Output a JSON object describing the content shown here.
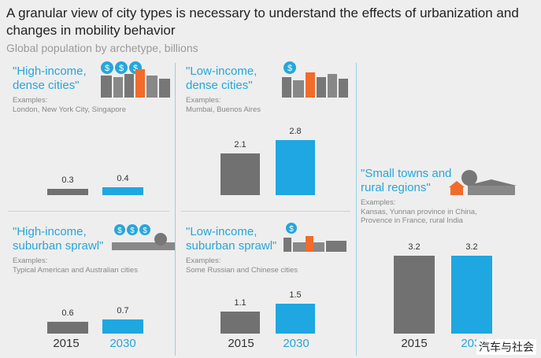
{
  "title": "A granular view of city types is necessary to understand the effects of urbanization and changes in mobility behavior",
  "subtitle": "Global population by archetype, billions",
  "examples_label": "Examples:",
  "years": [
    "2015",
    "2030"
  ],
  "colors": {
    "y2015": "#717171",
    "y2030": "#1ea7e1",
    "accent": "#27a6d9",
    "orange": "#f26b2b"
  },
  "chart_data": {
    "type": "bar",
    "categories": [
      "2015",
      "2030"
    ],
    "panels": [
      {
        "title": "\"High-income, dense cities\"",
        "examples": "London, New York City, Singapore",
        "values": [
          0.3,
          0.4
        ],
        "labels": [
          "0.3",
          "0.4"
        ]
      },
      {
        "title": "\"Low-income, dense cities\"",
        "examples": "Mumbai, Buenos Aires",
        "values": [
          2.1,
          2.8
        ],
        "labels": [
          "2.1",
          "2.8"
        ]
      },
      {
        "title": "\"High-income, suburban sprawl\"",
        "examples": "Typical American and Australian cities",
        "values": [
          0.6,
          0.7
        ],
        "labels": [
          "0.6",
          "0.7"
        ]
      },
      {
        "title": "\"Low-income, suburban sprawl\"",
        "examples": "Some Russian and Chinese cities",
        "values": [
          1.1,
          1.5
        ],
        "labels": [
          "1.1",
          "1.5"
        ]
      },
      {
        "title": "\"Small towns and rural regions\"",
        "examples": "Kansas, Yunnan province in China, Provence in France, rural India",
        "values": [
          3.2,
          3.2
        ],
        "labels": [
          "3.2",
          "3.2"
        ]
      }
    ]
  },
  "panel_titles": {
    "p0": [
      "\"High-income,",
      "dense cities\""
    ],
    "p1": [
      "\"Low-income,",
      "dense cities\""
    ],
    "p2": [
      "\"High-income,",
      "suburban sprawl\""
    ],
    "p3": [
      "\"Low-income,",
      "suburban sprawl\""
    ],
    "p4": [
      "\"Small towns and",
      "rural regions\""
    ]
  },
  "panel_examples": {
    "p0": [
      "London, New York City, Singapore"
    ],
    "p1": [
      "Mumbai, Buenos Aires"
    ],
    "p2": [
      "Typical American and Australian cities"
    ],
    "p3": [
      "Some Russian and Chinese cities"
    ],
    "p4": [
      "Kansas, Yunnan province in China,",
      "Provence in France, rural India"
    ]
  },
  "watermark": "汽车与社会"
}
